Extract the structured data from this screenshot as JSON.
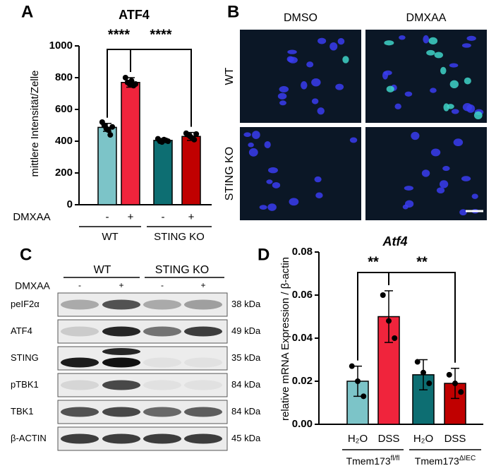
{
  "panels": [
    "A",
    "B",
    "C",
    "D"
  ],
  "chart_data": [
    {
      "type": "bar",
      "title": "ATF4",
      "y_label": "mittlere Intensität/Zelle",
      "row_label": "DMXAA",
      "categories": [
        "-",
        "+",
        "-",
        "+"
      ],
      "groups": [
        "WT",
        "STING KO"
      ],
      "values": [
        487,
        770,
        405,
        430
      ],
      "errors": [
        25,
        30,
        12,
        25
      ],
      "points": [
        [
          520,
          500,
          480,
          470,
          440,
          490
        ],
        [
          800,
          770,
          760,
          780,
          750,
          760
        ],
        [
          415,
          400,
          395,
          410,
          405,
          400
        ],
        [
          450,
          440,
          430,
          420,
          410,
          445
        ]
      ],
      "colors": [
        "#7cc4c8",
        "#f0243c",
        "#0d6e72",
        "#c00000"
      ],
      "ylim": [
        0,
        1000
      ],
      "yticks": [
        0,
        200,
        400,
        600,
        800,
        1000
      ],
      "significance": [
        "****",
        "****"
      ]
    },
    {
      "type": "bar",
      "title": "Atf4",
      "y_label": "relative mRNA Expression / β-actin",
      "categories": [
        "H₂O",
        "DSS",
        "H₂O",
        "DSS"
      ],
      "groups": [
        {
          "name": "Tmem173",
          "superscript": "fl/fl"
        },
        {
          "name": "Tmem173",
          "superscript": "ΔIEC"
        }
      ],
      "values": [
        0.02,
        0.05,
        0.023,
        0.019
      ],
      "errors": [
        0.007,
        0.012,
        0.007,
        0.007
      ],
      "points": [
        [
          0.027,
          0.02,
          0.013
        ],
        [
          0.06,
          0.048,
          0.04
        ],
        [
          0.029,
          0.024,
          0.019
        ],
        [
          0.023,
          0.019,
          0.015
        ]
      ],
      "colors": [
        "#7cc4c8",
        "#f0243c",
        "#0d6e72",
        "#c00000"
      ],
      "ylim": [
        0,
        0.08
      ],
      "yticks": [
        {
          "value": 0,
          "label": "0.00"
        },
        {
          "value": 0.02,
          "label": "0.02"
        },
        {
          "value": 0.04,
          "label": "0.04"
        },
        {
          "value": 0.06,
          "label": "0.06"
        },
        {
          "value": 0.08,
          "label": "0.08"
        }
      ],
      "significance": [
        "**",
        "**"
      ]
    }
  ],
  "panel_b": {
    "columns": [
      "DMSO",
      "DMXAA"
    ],
    "rows": [
      "WT",
      "STING KO"
    ]
  },
  "panel_c": {
    "groups": [
      "WT",
      "STING KO"
    ],
    "treatment_label": "DMXAA",
    "lanes": [
      "-",
      "+",
      "-",
      "+"
    ],
    "rows": [
      {
        "label": "peIF2α",
        "size": "38 kDa"
      },
      {
        "label": "ATF4",
        "size": "49 kDa"
      },
      {
        "label": "STING",
        "size": "35 kDa"
      },
      {
        "label": "pTBK1",
        "size": "84 kDa"
      },
      {
        "label": "TBK1",
        "size": "84 kDa"
      },
      {
        "label": "β-ACTIN",
        "size": "45 kDa"
      }
    ]
  }
}
